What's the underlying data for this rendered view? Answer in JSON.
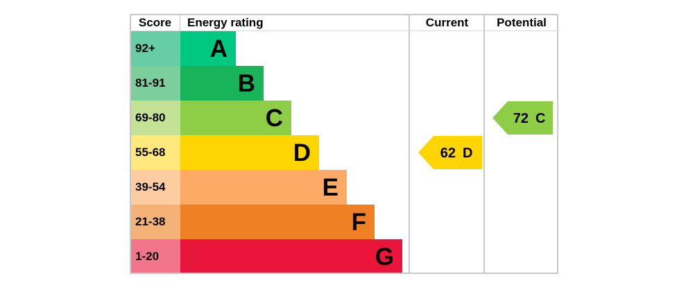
{
  "header": {
    "score": "Score",
    "energy_rating": "Energy rating",
    "current": "Current",
    "potential": "Potential"
  },
  "chart_data": {
    "type": "bar",
    "title": "",
    "columns": [
      "Score",
      "Energy rating",
      "Current",
      "Potential"
    ],
    "bands": [
      {
        "letter": "A",
        "range": "92+",
        "color": "#00c781",
        "tint": "#66cda6"
      },
      {
        "letter": "B",
        "range": "81-91",
        "color": "#19b459",
        "tint": "#7ccf9c"
      },
      {
        "letter": "C",
        "range": "69-80",
        "color": "#8dce46",
        "tint": "#c3e296"
      },
      {
        "letter": "D",
        "range": "55-68",
        "color": "#ffd500",
        "tint": "#ffe97d"
      },
      {
        "letter": "E",
        "range": "39-54",
        "color": "#fcaa65",
        "tint": "#fdcda1"
      },
      {
        "letter": "F",
        "range": "21-38",
        "color": "#ef8023",
        "tint": "#f5b276"
      },
      {
        "letter": "G",
        "range": "1-20",
        "color": "#e9153b",
        "tint": "#f2758b"
      }
    ],
    "current": {
      "value": "62",
      "band": "D",
      "color": "#ffd500"
    },
    "potential": {
      "value": "72",
      "band": "C",
      "color": "#8dce46"
    },
    "border_color": "#c8c8c8"
  }
}
